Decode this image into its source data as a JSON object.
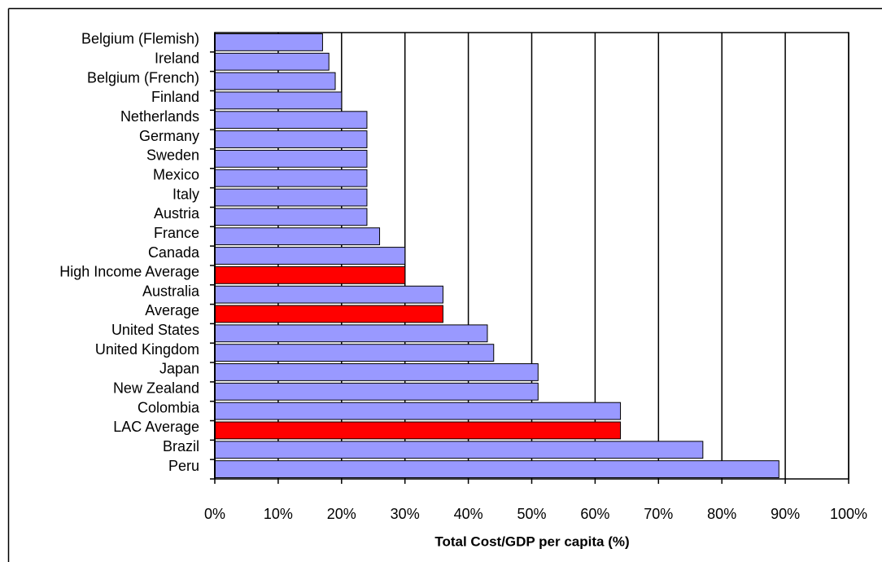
{
  "chart_data": {
    "type": "bar",
    "orientation": "horizontal",
    "x_label": "Total Cost/GDP per capita (%)",
    "categories": [
      "Belgium (Flemish)",
      "Ireland",
      "Belgium (French)",
      "Finland",
      "Netherlands",
      "Germany",
      "Sweden",
      "Mexico",
      "Italy",
      "Austria",
      "France",
      "Canada",
      "High Income Average",
      "Australia",
      "Average",
      "United States",
      "United Kingdom",
      "Japan",
      "New Zealand",
      "Colombia",
      "LAC Average",
      "Brazil",
      "Peru"
    ],
    "values": [
      17,
      18,
      19,
      20,
      24,
      24,
      24,
      24,
      24,
      24,
      26,
      30,
      30,
      36,
      36,
      43,
      44,
      51,
      51,
      64,
      64,
      77,
      89
    ],
    "colors": [
      "#9999ff",
      "#9999ff",
      "#9999ff",
      "#9999ff",
      "#9999ff",
      "#9999ff",
      "#9999ff",
      "#9999ff",
      "#9999ff",
      "#9999ff",
      "#9999ff",
      "#9999ff",
      "#ff0000",
      "#9999ff",
      "#ff0000",
      "#9999ff",
      "#9999ff",
      "#9999ff",
      "#9999ff",
      "#9999ff",
      "#ff0000",
      "#9999ff",
      "#9999ff"
    ],
    "xlim": [
      0,
      100
    ],
    "xticks": [
      {
        "value": 0,
        "label": "0%"
      },
      {
        "value": 10,
        "label": "10%"
      },
      {
        "value": 20,
        "label": "20%"
      },
      {
        "value": 30,
        "label": "30%"
      },
      {
        "value": 40,
        "label": "40%"
      },
      {
        "value": 50,
        "label": "50%"
      },
      {
        "value": 60,
        "label": "60%"
      },
      {
        "value": 70,
        "label": "70%"
      },
      {
        "value": 80,
        "label": "80%"
      },
      {
        "value": 90,
        "label": "90%"
      },
      {
        "value": 100,
        "label": "100%"
      }
    ],
    "grid": true
  }
}
